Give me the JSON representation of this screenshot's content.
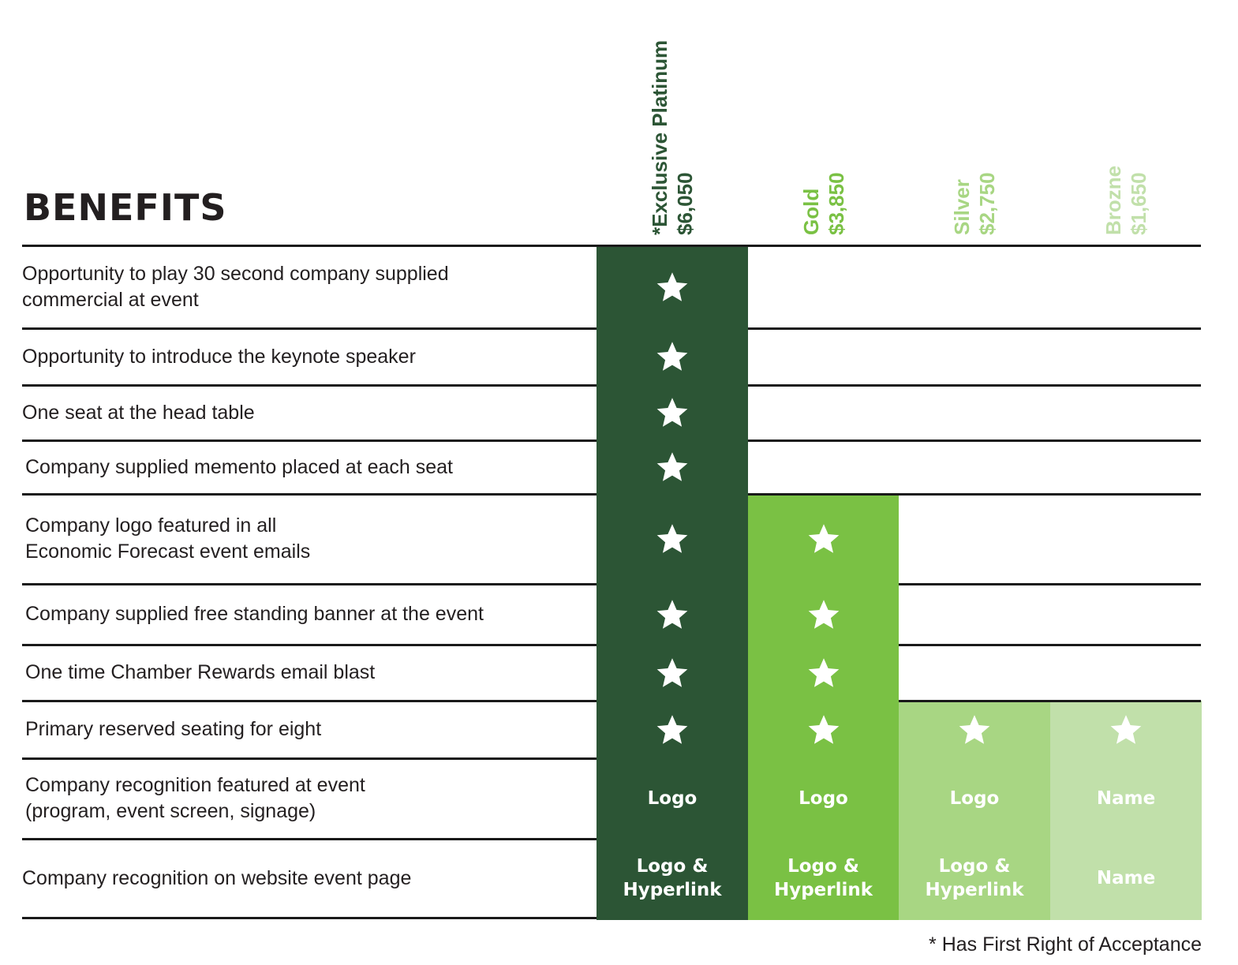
{
  "title": "BENEFITS",
  "footnote": "* Has First Right of Acceptance",
  "colors": {
    "platinum": "#2c5535",
    "gold": "#7ac144",
    "silver": "#a8d683",
    "bronze": "#c1e0aa",
    "rule": "#1a1a1a"
  },
  "tiers": [
    {
      "name": "*Exclusive Platinum",
      "price": "$6,050",
      "color": "#2c5535"
    },
    {
      "name": "Gold",
      "price": "$3,850",
      "color": "#7ac144"
    },
    {
      "name": "Silver",
      "price": "$2,750",
      "color": "#a8d683"
    },
    {
      "name": "Brozne",
      "price": "$1,650",
      "color": "#c1e0aa"
    }
  ],
  "icons": {
    "included": "star-icon"
  },
  "rows": [
    {
      "label": "Opportunity to play 30 second company supplied\ncommercial at event",
      "cells": [
        "star",
        "",
        "",
        ""
      ]
    },
    {
      "label": "Opportunity to introduce the keynote speaker",
      "cells": [
        "star",
        "",
        "",
        ""
      ]
    },
    {
      "label": "One seat at the head table",
      "cells": [
        "star",
        "",
        "",
        ""
      ]
    },
    {
      "label": "Company supplied memento placed at each seat",
      "cells": [
        "star",
        "",
        "",
        ""
      ]
    },
    {
      "label": "Company logo featured in all\nEconomic Forecast event emails",
      "cells": [
        "star",
        "star",
        "",
        ""
      ]
    },
    {
      "label": "Company supplied free standing banner at the event",
      "cells": [
        "star",
        "star",
        "",
        ""
      ]
    },
    {
      "label": "One time Chamber Rewards email blast",
      "cells": [
        "star",
        "star",
        "",
        ""
      ]
    },
    {
      "label": "Primary reserved seating for eight",
      "cells": [
        "star",
        "star",
        "star",
        "star"
      ]
    },
    {
      "label": "Company recognition featured at event\n(program, event screen, signage)",
      "cells": [
        "Logo",
        "Logo",
        "Logo",
        "Name"
      ]
    },
    {
      "label": "Company recognition on website event page",
      "cells": [
        "Logo &\nHyperlink",
        "Logo &\nHyperlink",
        "Logo &\nHyperlink",
        "Name"
      ]
    }
  ]
}
